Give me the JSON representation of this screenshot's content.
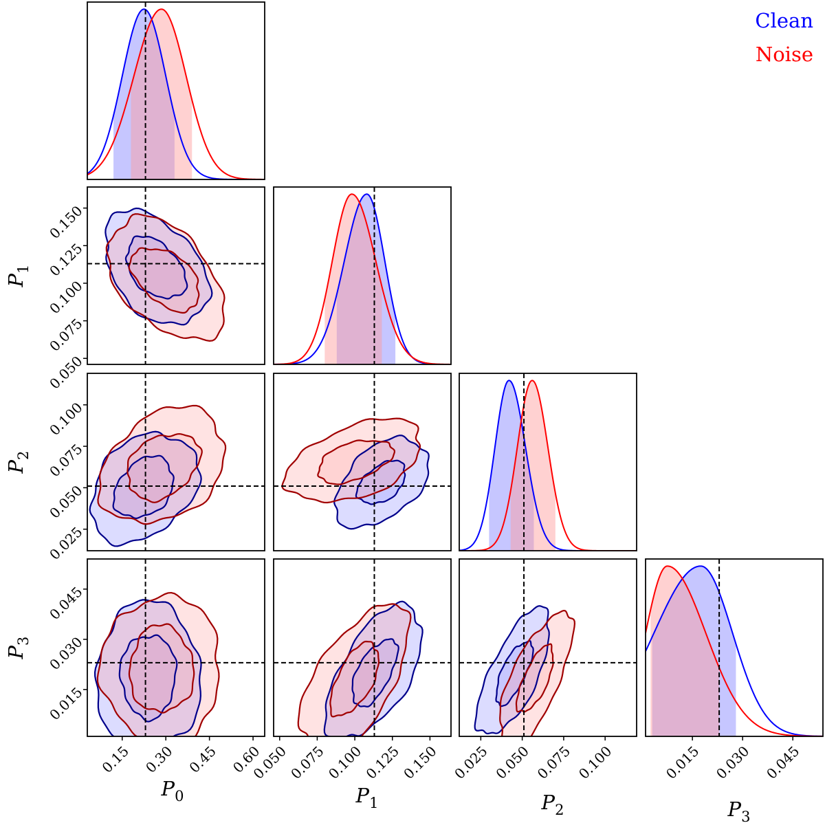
{
  "chart_data": {
    "type": "corner",
    "parameters": [
      "P_0",
      "P_1",
      "P_2",
      "P_3"
    ],
    "axis_labels": {
      "P_0": {
        "base": "P",
        "sub": "0"
      },
      "P_1": {
        "base": "P",
        "sub": "1"
      },
      "P_2": {
        "base": "P",
        "sub": "2"
      },
      "P_3": {
        "base": "P",
        "sub": "3"
      }
    },
    "ranges": {
      "P_0": [
        0.03,
        0.64
      ],
      "P_1": [
        0.046,
        0.164
      ],
      "P_2": [
        0.012,
        0.119
      ],
      "P_3": [
        0.001,
        0.054
      ]
    },
    "ticks": {
      "P_0": [
        "0.15",
        "0.30",
        "0.45",
        "0.60"
      ],
      "P_1": [
        "0.050",
        "0.075",
        "0.100",
        "0.125",
        "0.150"
      ],
      "P_2": [
        "0.025",
        "0.050",
        "0.075",
        "0.100"
      ],
      "P_3": [
        "0.015",
        "0.030",
        "0.045"
      ]
    },
    "truth": {
      "P_0": 0.23,
      "P_1": 0.113,
      "P_2": 0.051,
      "P_3": 0.023
    },
    "series": [
      {
        "name": "Clean",
        "color": "#0000ff",
        "contour_color": "#00008b",
        "fill": "#8080ff",
        "marginals": {
          "P_0": {
            "peak": 0.225,
            "sigma_left": 0.075,
            "sigma_right": 0.075,
            "ci": [
              0.12,
              0.33
            ]
          },
          "P_1": {
            "peak": 0.108,
            "sigma_left": 0.015,
            "sigma_right": 0.012,
            "ci": [
              0.088,
              0.127
            ]
          },
          "P_2": {
            "peak": 0.042,
            "sigma_left": 0.0085,
            "sigma_right": 0.01,
            "ci": [
              0.03,
              0.057
            ]
          },
          "P_3": {
            "peak": 0.0175,
            "sigma_left": 0.014,
            "sigma_right": 0.0095,
            "ci": [
              0.003,
              0.028
            ]
          }
        },
        "pairs": [
          {
            "x": "P_0",
            "y": "P_1",
            "center": [
              0.265,
              0.11
            ],
            "r68": [
              0.102,
              0.0205
            ],
            "r95": [
              0.178,
              0.038
            ],
            "corr": -0.4
          },
          {
            "x": "P_0",
            "y": "P_2",
            "center": [
              0.225,
              0.05
            ],
            "r68": [
              0.102,
              0.0185
            ],
            "r95": [
              0.185,
              0.033
            ],
            "corr": 0.3
          },
          {
            "x": "P_0",
            "y": "P_3",
            "center": [
              0.24,
              0.019
            ],
            "r68": [
              0.095,
              0.0125
            ],
            "r95": [
              0.18,
              0.022
            ],
            "corr": 0.0
          },
          {
            "x": "P_1",
            "y": "P_2",
            "center": [
              0.118,
              0.053
            ],
            "r68": [
              0.016,
              0.013
            ],
            "r95": [
              0.031,
              0.027
            ],
            "corr": 0.45
          },
          {
            "x": "P_1",
            "y": "P_3",
            "center": [
              0.113,
              0.02
            ],
            "r68": [
              0.015,
              0.01
            ],
            "r95": [
              0.032,
              0.02
            ],
            "corr": 0.6
          },
          {
            "x": "P_2",
            "y": "P_3",
            "center": [
              0.045,
              0.02
            ],
            "r68": [
              0.011,
              0.0095
            ],
            "r95": [
              0.022,
              0.019
            ],
            "corr": 0.7
          }
        ]
      },
      {
        "name": "Noise",
        "color": "#ff0000",
        "contour_color": "#a00000",
        "fill": "#ff9a9a",
        "marginals": {
          "P_0": {
            "peak": 0.285,
            "sigma_left": 0.095,
            "sigma_right": 0.085,
            "ci": [
              0.18,
              0.39
            ]
          },
          "P_1": {
            "peak": 0.098,
            "sigma_left": 0.013,
            "sigma_right": 0.016,
            "ci": [
              0.08,
              0.118
            ]
          },
          "P_2": {
            "peak": 0.056,
            "sigma_left": 0.009,
            "sigma_right": 0.0095,
            "ci": [
              0.043,
              0.07
            ]
          },
          "P_3": {
            "peak": 0.0075,
            "sigma_left": 0.0065,
            "sigma_right": 0.0115,
            "ci": [
              0.0025,
              0.023
            ]
          }
        },
        "pairs": [
          {
            "x": "P_0",
            "y": "P_1",
            "center": [
              0.3,
              0.103
            ],
            "r68": [
              0.118,
              0.021
            ],
            "r95": [
              0.2,
              0.041
            ],
            "corr": -0.45
          },
          {
            "x": "P_0",
            "y": "P_2",
            "center": [
              0.29,
              0.063
            ],
            "r68": [
              0.125,
              0.02
            ],
            "r95": [
              0.215,
              0.035
            ],
            "corr": 0.3
          },
          {
            "x": "P_0",
            "y": "P_3",
            "center": [
              0.285,
              0.021
            ],
            "r68": [
              0.11,
              0.013
            ],
            "r95": [
              0.205,
              0.022
            ],
            "corr": 0.0
          },
          {
            "x": "P_1",
            "y": "P_2",
            "center": [
              0.1,
              0.066
            ],
            "r68": [
              0.025,
              0.013
            ],
            "r95": [
              0.045,
              0.025
            ],
            "corr": 0.45
          },
          {
            "x": "P_1",
            "y": "P_3",
            "center": [
              0.1,
              0.018
            ],
            "r68": [
              0.016,
              0.011
            ],
            "r95": [
              0.036,
              0.022
            ],
            "corr": 0.6
          },
          {
            "x": "P_2",
            "y": "P_3",
            "center": [
              0.058,
              0.018
            ],
            "r68": [
              0.011,
              0.01
            ],
            "r95": [
              0.022,
              0.02
            ],
            "corr": 0.7
          }
        ]
      }
    ],
    "legend": {
      "position": "top-right",
      "entries": [
        "Clean",
        "Noise"
      ]
    }
  }
}
